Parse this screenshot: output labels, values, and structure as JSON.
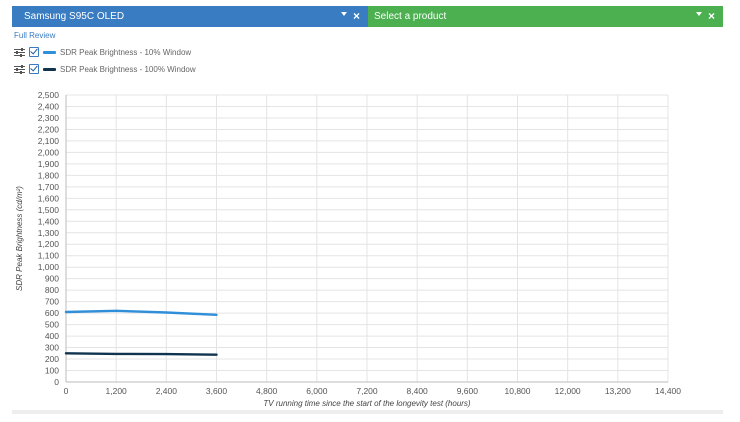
{
  "selectors": {
    "left": {
      "label": "Samsung S95C OLED",
      "color": "#3a7cc1"
    },
    "right": {
      "label": "Select a product",
      "color": "#4caf50"
    }
  },
  "full_review_label": "Full Review",
  "legend": [
    {
      "label": "SDR Peak Brightness - 10% Window",
      "color": "#2f8fd8"
    },
    {
      "label": "SDR Peak Brightness - 100% Window",
      "color": "#10344f"
    }
  ],
  "chart_data": {
    "type": "line",
    "xlabel": "TV running time since the start of the longevity test (hours)",
    "ylabel": "SDR Peak Brightness (cd/m²)",
    "xlim": [
      0,
      14400
    ],
    "ylim": [
      0,
      2500
    ],
    "xticks": [
      0,
      1200,
      2400,
      3600,
      4800,
      6000,
      7200,
      8400,
      9600,
      10800,
      12000,
      13200,
      14400
    ],
    "yticks": [
      0,
      100,
      200,
      300,
      400,
      500,
      600,
      700,
      800,
      900,
      1000,
      1100,
      1200,
      1300,
      1400,
      1500,
      1600,
      1700,
      1800,
      1900,
      2000,
      2100,
      2200,
      2300,
      2400,
      2500
    ],
    "grid": true,
    "series": [
      {
        "name": "SDR Peak Brightness - 10% Window",
        "color": "#2f8fd8",
        "x": [
          0,
          1200,
          2400,
          3600
        ],
        "y": [
          610,
          620,
          605,
          585
        ]
      },
      {
        "name": "SDR Peak Brightness - 100% Window",
        "color": "#10344f",
        "x": [
          0,
          1200,
          2400,
          3600
        ],
        "y": [
          250,
          245,
          243,
          238
        ]
      }
    ]
  }
}
